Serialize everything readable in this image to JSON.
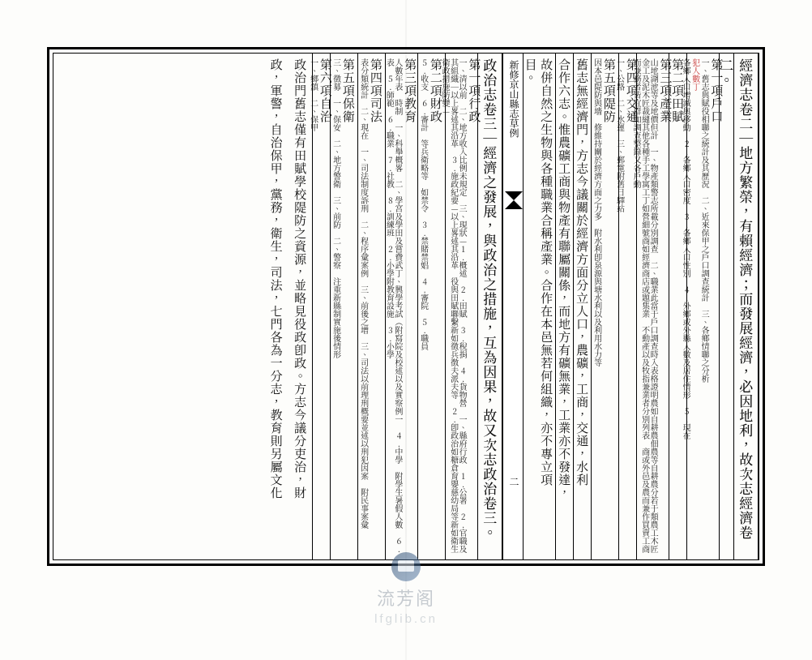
{
  "watermark": {
    "name": "流芳阁",
    "url": "lfglib.cn"
  },
  "spine": {
    "title": "新修京山縣志草例",
    "folio": "二"
  },
  "colors": {
    "ink": "#111111",
    "rubric": "#c62f2f",
    "paper": "#fdfdfb",
    "rule": "#000000"
  },
  "typography": {
    "main_pt": 17,
    "med_pt": 15,
    "small_pt": 11,
    "xsmall_pt": 10
  },
  "right_page": {
    "columns": [
      {
        "w": "w-main",
        "lines": [
          {
            "cls": "main",
            "text": "經濟志卷二｜地方繁榮，有賴經濟；而發展經濟，必因地利，故次志經濟卷"
          }
        ]
      },
      {
        "w": "w-narrow",
        "lines": [
          {
            "cls": "main",
            "text": "二。"
          }
        ]
      },
      {
        "w": "w-sub2",
        "lines": [
          {
            "cls": "med",
            "text": "第一項戶口　"
          },
          {
            "cls": "small",
            "text": "一、舊志與賦役相聯之統計及其歷況　二、近來保甲之戶口調查統計　三、各鄉情聯之分析"
          },
          {
            "cls": "xsmall red",
            "text": "犯人數丁"
          },
          {
            "cls": "small",
            "text": "各鄉人口增減與移動　2.各鄉人口密度　3.各鄉人口性別　4.外鄉或外縣人數及居住情形　5.現在"
          }
        ]
      },
      {
        "w": "w-head",
        "lines": [
          {
            "cls": "med",
            "text": "第二項田賦"
          }
        ]
      },
      {
        "w": "w-sub2",
        "lines": [
          {
            "cls": "med",
            "text": "第三項產業　"
          },
          {
            "cls": "small",
            "text": "山地湖池等及地價但計　一、物產類警志所載分別調查　二、職業此當于戶口調查時入表格證明農如自耕農佃農等自耕農分若于類農工木匠金工及泥木匠裁縫其他各種手工學寓工丁如營細號商如經濟商店或題集業 不動產以及牧指兼業者分別列表　商或外邑及農而兼作買賣工商而兼務者皆宜群加調查整錄又各戶動"
          }
        ]
      },
      {
        "w": "w-head",
        "lines": [
          {
            "cls": "med",
            "text": "第四項交通　"
          },
          {
            "cls": "small",
            "text": "一、公路　二、水運　三、郵電附舊日驛站"
          }
        ]
      },
      {
        "w": "w-sub",
        "lines": [
          {
            "cls": "med",
            "text": "第五項隄防　"
          },
          {
            "cls": "small",
            "text": "因本邑隄防與墻　修維持關於經濟方面之力多　附水利卽泉源與塘水利以及利用水力等"
          }
        ]
      },
      {
        "w": "w-head",
        "lines": [
          {
            "cls": "med",
            "text": "舊志無經濟門，方志今議關於經濟方面分立人口，農礦，工商，交通，水利"
          }
        ]
      },
      {
        "w": "w-head",
        "lines": [
          {
            "cls": "med",
            "text": "合作六志。惟農礦工商與物產有聯屬關係，而地方有礦無業，工業亦不發達，"
          }
        ]
      },
      {
        "w": "w-head",
        "lines": [
          {
            "cls": "med",
            "text": "故併自然之生物與各種職業合稱產業。合作在本邑無若何組織，亦不專立項"
          }
        ]
      },
      {
        "w": "w-narrow",
        "lines": [
          {
            "cls": "med",
            "text": "目。"
          }
        ]
      }
    ]
  },
  "left_page": {
    "columns": [
      {
        "w": "w-main",
        "lines": [
          {
            "cls": "main",
            "text": "政治志卷三｜經濟之發展，與政治之措施，互為因果，故又次志政治卷三。"
          }
        ]
      },
      {
        "w": "w-sub2",
        "lines": [
          {
            "cls": "med",
            "text": "第一項行政　"
          },
          {
            "cls": "small",
            "text": "一、清以前　二、地方收入比例未規定　三、現狀—1.概述　2.田賦　3.稅捐　4.貨物營　一、縣府行政　1.公署　2.官職及其組織｜以上畧述其沿革　3.施政紀要—以上畧述其沿革　役與田賦聯繫新如徵兵徴夫派夫等　2.卽政治如糖倉育嬰慈幼局等新如衛生衛政措施防變—"
          }
        ]
      },
      {
        "w": "w-sub",
        "lines": [
          {
            "cls": "med",
            "text": "第二項財政　"
          },
          {
            "cls": "small",
            "text": "5.收支　6.審計 等兵衛略等　如禁令 3.禁賭禁娼　4.審院　5.職員"
          }
        ]
      },
      {
        "w": "w-sub2",
        "lines": [
          {
            "cls": "med",
            "text": "第三項教育　"
          },
          {
            "cls": "small",
            "text": "人數年表　時制　一、科舉概畧　二、學宮及學田及嘗費武丁、興學考試（附寫院及校述以及實察例一　4.中學　附學生暑假人數　6.表　5.師範　6.職業　7.社教　8.訓練班　2.小學附教育設施　3.小學"
          }
        ]
      },
      {
        "w": "w-sub",
        "lines": [
          {
            "cls": "med",
            "text": "第四項司法　"
          },
          {
            "cls": "small",
            "text": "表分類統計　二、現在　一、司法制度訴刑　二、程序彙案例　三、前後之增　三、司法以前理刑概要並述以刑犯因案　附民事案彙"
          }
        ]
      },
      {
        "w": "w-sub",
        "lines": [
          {
            "cls": "med",
            "text": "第五項保衛　"
          },
          {
            "cls": "small",
            "text": "三、徵募　一、保安　二、地方警衛　三、前防　二、警察　注重新縣制實施後情形"
          }
        ]
      },
      {
        "w": "w-head",
        "lines": [
          {
            "cls": "med",
            "text": "第六項自治　"
          },
          {
            "cls": "small",
            "text": "一、鄉鎮　二、保甲"
          }
        ]
      },
      {
        "w": "w-main",
        "lines": [
          {
            "cls": "med",
            "text": "政治門舊志僅有田賦學校隄防之資源，並略見役政卽政。方志今議分吏治，財"
          }
        ]
      },
      {
        "w": "w-main",
        "lines": [
          {
            "cls": "med",
            "text": "政，軍警，自治保甲，黨務，衛生，司法，七門各為一分志，教育則另屬文化"
          }
        ]
      }
    ]
  }
}
